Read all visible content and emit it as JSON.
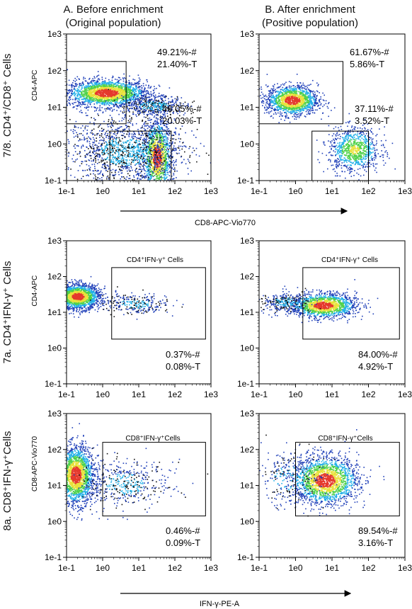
{
  "column_headers": [
    {
      "line1": "A. Before enrichment",
      "line2": "(Original population)"
    },
    {
      "line1": "B. After enrichment",
      "line2": "(Positive population)"
    }
  ],
  "row_labels": [
    "7/8. CD4⁺/CD8⁺ Cells",
    "7a. CD4⁺IFN-γ⁺ Cells",
    "8a. CD8⁺IFN-γ⁺Cells"
  ],
  "shared_x_labels": [
    {
      "row": 0,
      "text": "CD8-APC-Vio770"
    },
    {
      "row": 2,
      "text": "IFN-γ-PE-A"
    }
  ],
  "tick_labels": [
    "1e-1",
    "1e0",
    "1e1",
    "1e2",
    "1e3"
  ],
  "colors": {
    "low": "#1f3fb8",
    "mid": "#22b0e8",
    "midhigh": "#4fd14a",
    "high": "#e8e23a",
    "peak": "#e5392c",
    "ink": "#000000"
  },
  "chart_data": [
    {
      "type": "scatter",
      "panel": "row1-colA",
      "ylabel": "CD4-APC",
      "xlim": [
        -1,
        3
      ],
      "ylim": [
        -1,
        3
      ],
      "log_scale": true,
      "clusters": [
        {
          "cx": 0.1,
          "cy": 1.4,
          "sx": 0.55,
          "sy": 0.18,
          "n": 2200,
          "density": "high"
        },
        {
          "cx": 1.4,
          "cy": 1.05,
          "sx": 0.45,
          "sy": 0.15,
          "n": 500,
          "density": "low"
        },
        {
          "cx": 1.5,
          "cy": -0.35,
          "sx": 0.2,
          "sy": 0.5,
          "n": 1400,
          "density": "high"
        },
        {
          "cx": 0.6,
          "cy": -0.2,
          "sx": 0.8,
          "sy": 0.45,
          "n": 1500,
          "density": "low"
        }
      ],
      "gates": [
        {
          "x1": -1,
          "x2": 0.65,
          "y1": 0.55,
          "y2": 2.25,
          "labels": [
            "49.21%-#",
            "21.40%-T"
          ]
        },
        {
          "x1": 0.2,
          "x2": 1.9,
          "y1": -1,
          "y2": 0.35,
          "labels": [
            "46.05%-#",
            "20.03%-T"
          ]
        }
      ]
    },
    {
      "type": "scatter",
      "panel": "row1-colB",
      "ylabel": "",
      "xlim": [
        -1,
        3
      ],
      "ylim": [
        -1,
        3
      ],
      "log_scale": true,
      "clusters": [
        {
          "cx": -0.1,
          "cy": 1.2,
          "sx": 0.35,
          "sy": 0.2,
          "n": 1500,
          "density": "high"
        },
        {
          "cx": 1.6,
          "cy": -0.15,
          "sx": 0.35,
          "sy": 0.3,
          "n": 900,
          "density": "mid"
        }
      ],
      "gates": [
        {
          "x1": -1,
          "x2": 1.3,
          "y1": 0.55,
          "y2": 2.25,
          "labels": [
            "61.67%-#",
            "5.86%-T"
          ]
        },
        {
          "x1": 0.45,
          "x2": 2.0,
          "y1": -1,
          "y2": 0.35,
          "labels": [
            "37.11%-#",
            "3.52%-T"
          ]
        }
      ]
    },
    {
      "type": "scatter",
      "panel": "row2-colA",
      "ylabel": "CD4-APC",
      "xlim": [
        -1,
        3
      ],
      "ylim": [
        -1,
        3
      ],
      "log_scale": true,
      "clusters": [
        {
          "cx": -0.7,
          "cy": 1.45,
          "sx": 0.3,
          "sy": 0.17,
          "n": 1800,
          "density": "high"
        },
        {
          "cx": 0.9,
          "cy": 1.25,
          "sx": 0.5,
          "sy": 0.15,
          "n": 300,
          "density": "low"
        }
      ],
      "gates": [
        {
          "title": "CD4⁺IFN-γ⁺ Cells",
          "x1": 0.25,
          "x2": 2.85,
          "y1": 0.25,
          "y2": 2.25,
          "labels": [
            "0.37%-#",
            "0.08%-T"
          ]
        }
      ]
    },
    {
      "type": "scatter",
      "panel": "row2-colB",
      "ylabel": "",
      "xlim": [
        -1,
        3
      ],
      "ylim": [
        -1,
        3
      ],
      "log_scale": true,
      "clusters": [
        {
          "cx": 0.75,
          "cy": 1.2,
          "sx": 0.45,
          "sy": 0.17,
          "n": 1500,
          "density": "high"
        },
        {
          "cx": -0.3,
          "cy": 1.3,
          "sx": 0.35,
          "sy": 0.14,
          "n": 300,
          "density": "low"
        }
      ],
      "gates": [
        {
          "title": "CD4⁺IFN-γ⁺ Cells",
          "x1": 0.2,
          "x2": 2.85,
          "y1": 0.25,
          "y2": 2.25,
          "labels": [
            "84.00%-#",
            "4.92%-T"
          ]
        }
      ]
    },
    {
      "type": "scatter",
      "panel": "row3-colA",
      "ylabel": "CD8-APC-Vio770",
      "xlim": [
        -1,
        3
      ],
      "ylim": [
        -1,
        3
      ],
      "log_scale": true,
      "clusters": [
        {
          "cx": -0.75,
          "cy": 1.3,
          "sx": 0.25,
          "sy": 0.4,
          "n": 2000,
          "density": "high"
        },
        {
          "cx": 0.6,
          "cy": 1.05,
          "sx": 0.6,
          "sy": 0.35,
          "n": 500,
          "density": "low"
        }
      ],
      "gates": [
        {
          "title": "CD8⁺IFN-γ⁺Cells",
          "x1": 0.0,
          "x2": 2.85,
          "y1": 0.15,
          "y2": 2.2,
          "labels": [
            "0.46%-#",
            "0.09%-T"
          ]
        }
      ]
    },
    {
      "type": "scatter",
      "panel": "row3-colB",
      "ylabel": "",
      "xlim": [
        -1,
        3
      ],
      "ylim": [
        -1,
        3
      ],
      "log_scale": true,
      "clusters": [
        {
          "cx": 0.8,
          "cy": 1.15,
          "sx": 0.45,
          "sy": 0.33,
          "n": 1900,
          "density": "high"
        },
        {
          "cx": -0.2,
          "cy": 1.2,
          "sx": 0.5,
          "sy": 0.4,
          "n": 300,
          "density": "low"
        }
      ],
      "gates": [
        {
          "title": "CD8⁺IFN-γ⁺Cells",
          "x1": 0.0,
          "x2": 2.85,
          "y1": 0.15,
          "y2": 2.2,
          "labels": [
            "89.54%-#",
            "3.16%-T"
          ]
        }
      ]
    }
  ]
}
